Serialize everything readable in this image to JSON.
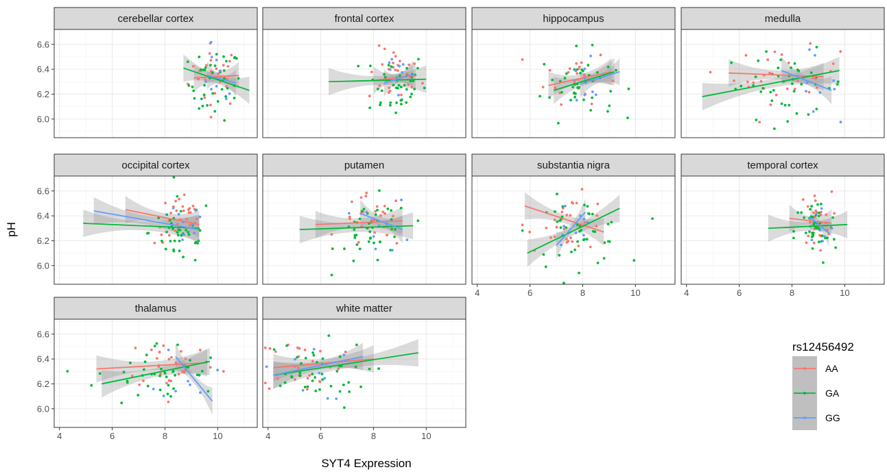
{
  "chart_data": {
    "type": "scatter",
    "xlabel": "SYT4 Expression",
    "ylabel": "pH",
    "xlim": [
      3.8,
      11.5
    ],
    "ylim": [
      5.85,
      6.72
    ],
    "x_ticks": [
      4,
      6,
      8,
      10
    ],
    "y_ticks": [
      6.0,
      6.2,
      6.4,
      6.6
    ],
    "x_tick_labels": [
      "4",
      "6",
      "8",
      "10"
    ],
    "y_tick_labels": [
      "6.0",
      "6.2",
      "6.4",
      "6.6"
    ],
    "grid": true,
    "legend": {
      "title": "rs12456492",
      "placement": "right",
      "entries": [
        {
          "label": "AA",
          "color": "#F8766D"
        },
        {
          "label": "GA",
          "color": "#00BA38"
        },
        {
          "label": "GG",
          "color": "#619CFF"
        }
      ]
    },
    "panels": [
      {
        "name": "cerebellar cortex",
        "clusters": {
          "AA": [
            9.9,
            0.5,
            6.35,
            0.15,
            28
          ],
          "GA": [
            9.9,
            0.5,
            6.28,
            0.17,
            42
          ],
          "GG": [
            10.0,
            0.4,
            6.32,
            0.14,
            9
          ]
        },
        "fits": {
          "AA": [
            9.1,
            10.8,
            6.33,
            6.35
          ],
          "GA": [
            8.7,
            11.2,
            6.41,
            6.23
          ],
          "GG": [
            9.6,
            10.7,
            6.35,
            6.29
          ]
        }
      },
      {
        "name": "frontal cortex",
        "clusters": {
          "AA": [
            8.8,
            0.5,
            6.35,
            0.13,
            28
          ],
          "GA": [
            8.8,
            0.6,
            6.28,
            0.16,
            42
          ],
          "GG": [
            9.0,
            0.4,
            6.35,
            0.15,
            9
          ]
        },
        "fits": {
          "AA": [
            8.0,
            9.6,
            6.31,
            6.35
          ],
          "GA": [
            6.3,
            10.0,
            6.3,
            6.32
          ],
          "GG": [
            8.4,
            9.5,
            6.29,
            6.36
          ]
        }
      },
      {
        "name": "hippocampus",
        "clusters": {
          "AA": [
            7.8,
            0.6,
            6.35,
            0.13,
            28
          ],
          "GA": [
            7.8,
            0.7,
            6.28,
            0.16,
            42
          ],
          "GG": [
            8.2,
            0.6,
            6.3,
            0.14,
            9
          ]
        },
        "fits": {
          "AA": [
            6.7,
            9.1,
            6.27,
            6.38
          ],
          "GA": [
            6.9,
            9.2,
            6.23,
            6.38
          ],
          "GG": [
            7.9,
            9.4,
            6.28,
            6.38
          ]
        }
      },
      {
        "name": "medulla",
        "clusters": {
          "AA": [
            7.8,
            1.0,
            6.35,
            0.13,
            28
          ],
          "GA": [
            7.8,
            1.2,
            6.28,
            0.16,
            42
          ],
          "GG": [
            8.5,
            0.6,
            6.28,
            0.14,
            9
          ]
        },
        "fits": {
          "AA": [
            5.6,
            9.2,
            6.37,
            6.34
          ],
          "GA": [
            4.6,
            9.8,
            6.18,
            6.39
          ],
          "GG": [
            7.6,
            9.5,
            6.39,
            6.23
          ]
        }
      },
      {
        "name": "occipital cortex",
        "clusters": {
          "AA": [
            8.6,
            0.5,
            6.37,
            0.12,
            28
          ],
          "GA": [
            8.6,
            0.6,
            6.27,
            0.16,
            42
          ],
          "GG": [
            8.7,
            0.4,
            6.3,
            0.13,
            9
          ]
        },
        "fits": {
          "AA": [
            6.5,
            9.3,
            6.45,
            6.33
          ],
          "GA": [
            4.9,
            9.3,
            6.34,
            6.3
          ],
          "GG": [
            5.3,
            9.3,
            6.44,
            6.29
          ]
        }
      },
      {
        "name": "putamen",
        "clusters": {
          "AA": [
            8.0,
            0.6,
            6.35,
            0.13,
            28
          ],
          "GA": [
            8.0,
            0.7,
            6.27,
            0.16,
            42
          ],
          "GG": [
            8.5,
            0.5,
            6.3,
            0.14,
            9
          ]
        },
        "fits": {
          "AA": [
            5.8,
            9.1,
            6.33,
            6.36
          ],
          "GA": [
            5.2,
            9.5,
            6.29,
            6.32
          ],
          "GG": [
            7.5,
            9.1,
            6.42,
            6.29
          ]
        }
      },
      {
        "name": "substantia nigra",
        "clusters": {
          "AA": [
            7.5,
            0.8,
            6.35,
            0.13,
            28
          ],
          "GA": [
            7.8,
            0.9,
            6.27,
            0.16,
            42
          ],
          "GG": [
            7.6,
            0.5,
            6.3,
            0.14,
            9
          ]
        },
        "fits": {
          "AA": [
            5.8,
            8.8,
            6.48,
            6.27
          ],
          "GA": [
            5.9,
            9.4,
            6.1,
            6.46
          ],
          "GG": [
            7.0,
            8.1,
            6.16,
            6.43
          ]
        }
      },
      {
        "name": "temporal cortex",
        "clusters": {
          "AA": [
            8.9,
            0.3,
            6.37,
            0.13,
            28
          ],
          "GA": [
            8.9,
            0.4,
            6.27,
            0.16,
            42
          ],
          "GG": [
            9.0,
            0.3,
            6.3,
            0.14,
            9
          ]
        },
        "fits": {
          "AA": [
            7.9,
            9.5,
            6.38,
            6.34
          ],
          "GA": [
            7.1,
            10.1,
            6.3,
            6.33
          ],
          "GG": [
            8.7,
            9.4,
            6.39,
            6.26
          ]
        }
      },
      {
        "name": "thalamus",
        "clusters": {
          "AA": [
            8.3,
            0.9,
            6.37,
            0.13,
            28
          ],
          "GA": [
            7.8,
            1.2,
            6.27,
            0.16,
            42
          ],
          "GG": [
            8.8,
            0.5,
            6.3,
            0.14,
            9
          ]
        },
        "fits": {
          "AA": [
            5.4,
            9.6,
            6.32,
            6.37
          ],
          "GA": [
            5.6,
            9.7,
            6.2,
            6.38
          ],
          "GG": [
            8.4,
            9.8,
            6.42,
            6.06
          ]
        }
      },
      {
        "name": "white matter",
        "clusters": {
          "AA": [
            5.2,
            0.8,
            6.37,
            0.13,
            28
          ],
          "GA": [
            5.6,
            1.1,
            6.27,
            0.16,
            42
          ],
          "GG": [
            5.4,
            0.8,
            6.3,
            0.14,
            9
          ]
        },
        "fits": {
          "AA": [
            4.2,
            8.0,
            6.33,
            6.4
          ],
          "GA": [
            4.2,
            9.7,
            6.27,
            6.45
          ],
          "GG": [
            4.2,
            7.6,
            6.27,
            6.42
          ]
        }
      }
    ]
  }
}
